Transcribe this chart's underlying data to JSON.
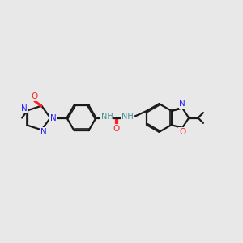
{
  "background_color": "#e8e8e8",
  "bond_color": "#1a1a1a",
  "N_color": "#2626ff",
  "O_color": "#ff2020",
  "N_teal_color": "#3d9090",
  "figsize": [
    3.0,
    3.0
  ],
  "dpi": 100,
  "lw": 1.6,
  "lw2": 1.2,
  "fs": 7.5,
  "xlim": [
    0,
    10
  ],
  "ylim": [
    0,
    10
  ]
}
